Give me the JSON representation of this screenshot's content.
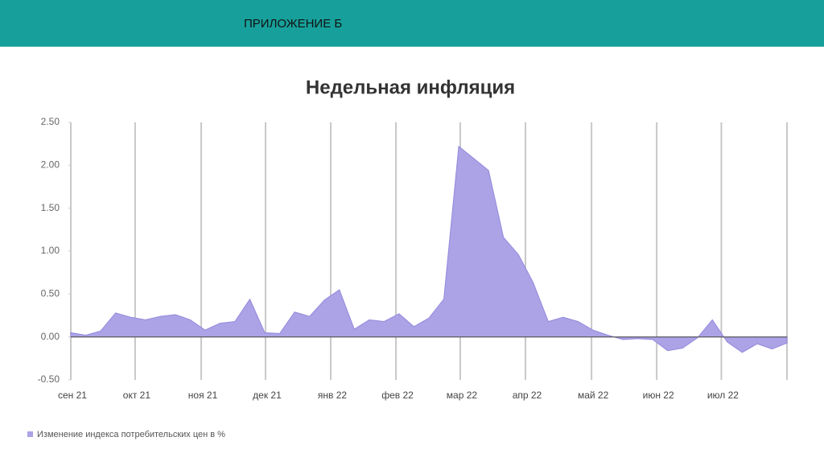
{
  "header": {
    "title": "ПРИЛОЖЕНИЕ Б"
  },
  "chart_data": {
    "type": "area",
    "title": "Недельная инфляция",
    "x": [
      0,
      1,
      2,
      3,
      4,
      5,
      6,
      7,
      8,
      9,
      10,
      11,
      12,
      13,
      14,
      15,
      16,
      17,
      18,
      19,
      20,
      21,
      22,
      23,
      24,
      25,
      26,
      27,
      28,
      29,
      30,
      31,
      32,
      33,
      34,
      35,
      36,
      37,
      38,
      39,
      40,
      41,
      42,
      43,
      44,
      45,
      46,
      47,
      48
    ],
    "series": [
      {
        "name": "Изменение индекса потребительских цен в %",
        "color": "#ab a3e6",
        "values": [
          0.05,
          0.02,
          0.07,
          0.28,
          0.23,
          0.2,
          0.24,
          0.26,
          0.2,
          0.08,
          0.16,
          0.18,
          0.44,
          0.05,
          0.04,
          0.29,
          0.24,
          0.43,
          0.55,
          0.09,
          0.2,
          0.18,
          0.27,
          0.12,
          0.22,
          0.44,
          2.22,
          2.08,
          1.94,
          1.16,
          0.96,
          0.63,
          0.18,
          0.23,
          0.18,
          0.08,
          0.02,
          -0.03,
          -0.02,
          -0.03,
          -0.16,
          -0.13,
          -0.01,
          0.2,
          -0.06,
          -0.18,
          -0.08,
          -0.14,
          -0.07
        ]
      }
    ],
    "xlim": [
      0,
      48
    ],
    "xticks": [
      {
        "value": 0,
        "label": "сен 21"
      },
      {
        "value": 4.31,
        "label": "окт 21"
      },
      {
        "value": 8.74,
        "label": "ноя 21"
      },
      {
        "value": 13.05,
        "label": "дек 21"
      },
      {
        "value": 17.42,
        "label": "янв 22"
      },
      {
        "value": 21.79,
        "label": "фев 22"
      },
      {
        "value": 26.1,
        "label": "мар 22"
      },
      {
        "value": 30.47,
        "label": "апр 22"
      },
      {
        "value": 34.9,
        "label": "май 22"
      },
      {
        "value": 39.27,
        "label": "июн 22"
      },
      {
        "value": 43.6,
        "label": "июл 22"
      },
      48
    ],
    "ylim": [
      -0.5,
      2.5
    ],
    "yticks": [
      {
        "value": -0.5,
        "label": "-0.50"
      },
      {
        "value": 0,
        "label": "0.00"
      },
      {
        "value": 0.5,
        "label": "0.50"
      },
      {
        "value": 1,
        "label": "1.00"
      },
      {
        "value": 1.5,
        "label": "1.50"
      },
      {
        "value": 2,
        "label": "2.00"
      },
      {
        "value": 2.5,
        "label": "2.50"
      }
    ],
    "grid": true
  }
}
